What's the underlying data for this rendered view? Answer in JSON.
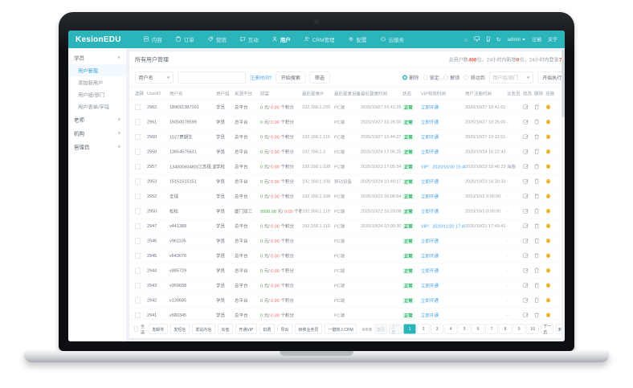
{
  "navbar": {
    "logo": "KesionEDU",
    "items": [
      {
        "label": "内容"
      },
      {
        "label": "订单"
      },
      {
        "label": "营销"
      },
      {
        "label": "互动"
      },
      {
        "label": "用户"
      },
      {
        "label": "CRM管理"
      },
      {
        "label": "配置"
      },
      {
        "label": "云服务"
      }
    ],
    "right": {
      "admin": "admin",
      "logout": "注销",
      "about": "关于"
    }
  },
  "sidebar": {
    "groups": [
      {
        "label": "学员"
      },
      {
        "label": "老师"
      },
      {
        "label": "机构"
      },
      {
        "label": "管理员"
      }
    ],
    "student_children": [
      {
        "label": "用户管理"
      },
      {
        "label": "添加新用户"
      },
      {
        "label": "用户组/部门"
      },
      {
        "label": "用户表单/字段"
      }
    ]
  },
  "page": {
    "title": "所有用户管理",
    "stats_parts": [
      "总用户数",
      "408",
      "位，24小时内新增",
      "0",
      "位，24小时内登录",
      "7",
      "位"
    ]
  },
  "filter": {
    "field_select": "用户名",
    "reg_time_link": "注册时间?",
    "search_button": "开始搜索",
    "filter_button": "筛选",
    "batch_options": [
      "删除",
      "锁定",
      "解锁",
      "移动到"
    ],
    "batch_selected": "删除",
    "group_select": "用户组/部门",
    "execute_button": "开始执行"
  },
  "table": {
    "headers": [
      "选择",
      "UserID",
      "用户名",
      "用户组",
      "来源平台",
      "财富",
      "最后登录IP",
      "最后登录设备",
      "最后登录时间",
      "状态",
      "VIP有效时间",
      "用户注册时间",
      "业务员",
      "修改",
      "删除",
      "充值"
    ],
    "wealth_sep": " 元/ ",
    "wealth_suffix": " 个积分",
    "rows": [
      {
        "id": "2962",
        "username": "189691387101",
        "group": "学员",
        "platform": "总平台",
        "yuan": "0",
        "points": "0.00",
        "ip": "192.168.1.235",
        "device": "PC端",
        "login_time": "2020/10/27 10:41:25",
        "status": "正常",
        "vip": "立即开通",
        "reg_time": "2020/10/27 10:41:01",
        "agent": "-"
      },
      {
        "id": "2961",
        "username": "16050078599",
        "group": "学员",
        "platform": "总平台",
        "yuan": "0",
        "points": "0.00",
        "ip": "",
        "device": "PC端",
        "login_time": "2020/10/27 10:26:00",
        "status": "正常",
        "vip": "立即开通",
        "reg_time": "2020/10/27 10:26:00",
        "agent": "-"
      },
      {
        "id": "2960",
        "username": "1027更期生",
        "group": "学员",
        "platform": "总平台",
        "yuan": "0",
        "points": "0.00",
        "ip": "192.168.1.119",
        "device": "PC端",
        "login_time": "2020/10/27 10:44:27",
        "status": "正常",
        "vip": "立即开通",
        "reg_time": "2020/10/27 10:12:51",
        "agent": "-"
      },
      {
        "id": "2958",
        "username": "13654575631",
        "group": "学员",
        "platform": "总平台",
        "yuan": "0",
        "points": "0.00",
        "ip": "192.168.1.3",
        "device": "PC端",
        "login_time": "2020/10/24 17:05:25",
        "status": "正常",
        "vip": "立即开通",
        "reg_time": "2020/10/24 16:22:43",
        "agent": "-"
      },
      {
        "id": "2957",
        "username": "13400060480(江苏极.监域名)",
        "group": "学校",
        "platform": "总平台",
        "yuan": "0",
        "points": "0.00",
        "ip": "192.168.1.198",
        "device": "PC端",
        "login_time": "2020/10/23 17:05:34",
        "status": "正常",
        "vip": "VIP：2020/10/30 15:46:23",
        "reg_time": "2020/10/23 15:46:23",
        "agent": "海豚"
      },
      {
        "id": "2953",
        "username": "15151515151",
        "group": "学员",
        "platform": "总平台",
        "yuan": "0",
        "points": "0.00",
        "ip": "192.168.1.198",
        "device": "移动设备",
        "login_time": "2020/10/24 10:49:17",
        "status": "正常",
        "vip": "立即开通",
        "reg_time": "2020/10/23 16:30:33",
        "agent": "-"
      },
      {
        "id": "2952",
        "username": "全球",
        "group": "学员",
        "platform": "总平台",
        "yuan": "0",
        "points": "0.00",
        "ip": "192.168.1.198",
        "device": "PC端",
        "login_time": "2020/10/22 16:06:54",
        "status": "正常",
        "vip": "立即开通",
        "reg_time": "2019/10/1 0:00:00",
        "agent": "-"
      },
      {
        "id": "2950",
        "username": "松松",
        "group": "学员",
        "platform": "厦门双三",
        "yuan": "9999.98",
        "points": "0.00",
        "ip": "192.168.1.119",
        "device": "PC端",
        "login_time": "2020/10/22 16:20:08",
        "status": "正常",
        "vip": "立即开通",
        "reg_time": "2019/10/1 0:00:00",
        "agent": "-"
      },
      {
        "id": "2947",
        "username": "v441389",
        "group": "学员",
        "platform": "总平台",
        "yuan": "0",
        "points": "0.00",
        "ip": "192.168.1.119",
        "device": "PC端",
        "login_time": "2020/10/24 10:09:30",
        "status": "正常",
        "vip": "VIP：2020/11/20 17:49:41",
        "reg_time": "2020/10/21 17:49:41",
        "agent": "-"
      },
      {
        "id": "2946",
        "username": "v961105",
        "group": "学员",
        "platform": "总平台",
        "yuan": "0",
        "points": "0.00",
        "ip": "",
        "device": "PC端",
        "login_time": "",
        "status": "正常",
        "vip": "立即开通",
        "reg_time": "",
        "agent": "-"
      },
      {
        "id": "2945",
        "username": "v643070",
        "group": "学员",
        "platform": "总平台",
        "yuan": "0",
        "points": "0.00",
        "ip": "",
        "device": "PC端",
        "login_time": "",
        "status": "正常",
        "vip": "立即开通",
        "reg_time": "",
        "agent": "-"
      },
      {
        "id": "2944",
        "username": "v885729",
        "group": "学员",
        "platform": "总平台",
        "yuan": "0",
        "points": "0.00",
        "ip": "",
        "device": "PC端",
        "login_time": "",
        "status": "正常",
        "vip": "立即开通",
        "reg_time": "",
        "agent": "-"
      },
      {
        "id": "2943",
        "username": "v959658",
        "group": "学员",
        "platform": "总平台",
        "yuan": "0",
        "points": "0.00",
        "ip": "",
        "device": "PC端",
        "login_time": "",
        "status": "正常",
        "vip": "立即开通",
        "reg_time": "",
        "agent": "-"
      },
      {
        "id": "2942",
        "username": "v130685",
        "group": "学员",
        "platform": "总平台",
        "yuan": "0",
        "points": "0.00",
        "ip": "",
        "device": "PC端",
        "login_time": "",
        "status": "正常",
        "vip": "立即开通",
        "reg_time": "",
        "agent": "-"
      },
      {
        "id": "2941",
        "username": "v680345",
        "group": "学员",
        "platform": "总平台",
        "yuan": "0",
        "points": "0.00",
        "ip": "",
        "device": "PC端",
        "login_time": "",
        "status": "正常",
        "vip": "立即开通",
        "reg_time": "",
        "agent": "-"
      }
    ]
  },
  "footer": {
    "select_all": "全选",
    "buttons": [
      "发邮件",
      "发短信",
      "发站内信",
      "充值",
      "开通VIP",
      "扣费",
      "导出",
      "转移业务员",
      "一键转入CRM"
    ],
    "count": "408条",
    "pagination": {
      "first": "首页",
      "prev": "上一页",
      "pages": [
        "1",
        "2",
        "3",
        "4",
        "5",
        "6",
        "7",
        "8",
        "9",
        "10"
      ],
      "active": "1",
      "next": "下一页",
      "last": "末页"
    }
  }
}
